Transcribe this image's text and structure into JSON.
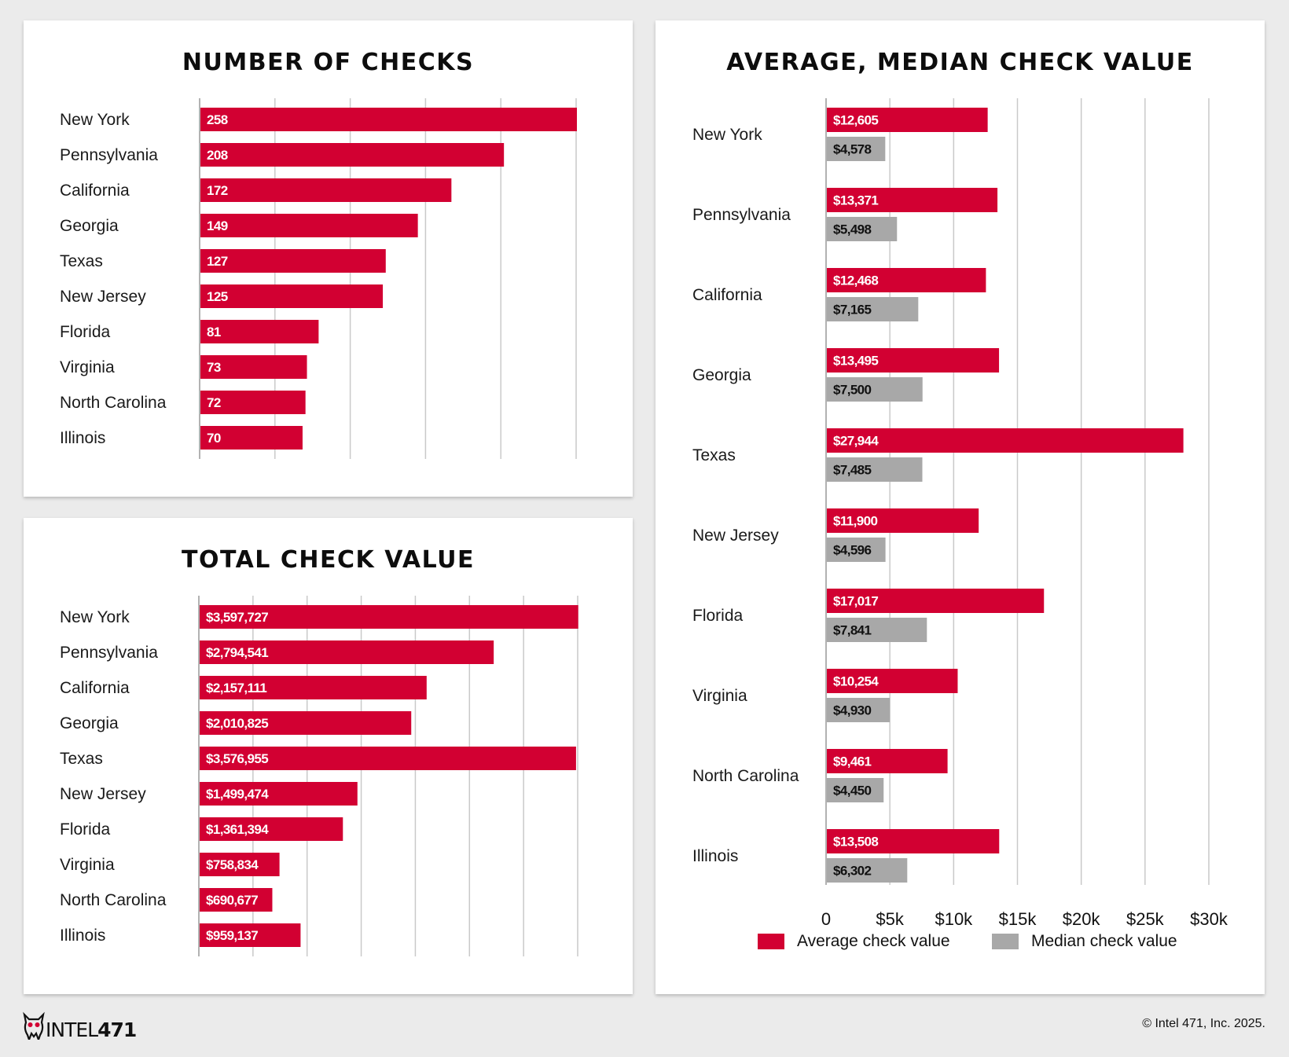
{
  "colors": {
    "red": "#d20032",
    "gray": "#a8a8a8",
    "grid": "#c9c9c9",
    "axis": "#999999"
  },
  "chart_data": [
    {
      "type": "bar",
      "title": "NUMBER OF CHECKS",
      "categories": [
        "New York",
        "Pennsylvania",
        "California",
        "Georgia",
        "Texas",
        "New Jersey",
        "Florida",
        "Virginia",
        "North Carolina",
        "Illinois"
      ],
      "values": [
        258,
        208,
        172,
        149,
        127,
        125,
        81,
        73,
        72,
        70
      ],
      "value_labels": [
        "258",
        "208",
        "172",
        "149",
        "127",
        "125",
        "81",
        "73",
        "72",
        "70"
      ],
      "xlim": [
        0,
        258
      ],
      "grid": true
    },
    {
      "type": "bar",
      "title": "TOTAL CHECK VALUE",
      "categories": [
        "New York",
        "Pennsylvania",
        "California",
        "Georgia",
        "Texas",
        "New Jersey",
        "Florida",
        "Virginia",
        "North Carolina",
        "Illinois"
      ],
      "values": [
        3597727,
        2794541,
        2157111,
        2010825,
        3576955,
        1499474,
        1361394,
        758834,
        690677,
        959137
      ],
      "value_labels": [
        "$3,597,727",
        "$2,794,541",
        "$2,157,111",
        "$2,010,825",
        "$3,576,955",
        "$1,499,474",
        "$1,361,394",
        "$758,834",
        "$690,677",
        "$959,137"
      ],
      "xlim": [
        0,
        3600000
      ],
      "grid": true
    },
    {
      "type": "bar",
      "title": "AVERAGE, MEDIAN CHECK VALUE",
      "categories": [
        "New York",
        "Pennsylvania",
        "California",
        "Georgia",
        "Texas",
        "New Jersey",
        "Florida",
        "Virginia",
        "North Carolina",
        "Illinois"
      ],
      "series": [
        {
          "name": "Average check value",
          "values": [
            12605,
            13371,
            12468,
            13495,
            27944,
            11900,
            17017,
            10254,
            9461,
            13508
          ],
          "value_labels": [
            "$12,605",
            "$13,371",
            "$12,468",
            "$13,495",
            "$27,944",
            "$11,900",
            "$17,017",
            "$10,254",
            "$9,461",
            "$13,508"
          ]
        },
        {
          "name": "Median check value",
          "values": [
            4578,
            5498,
            7165,
            7500,
            7485,
            4596,
            7841,
            4930,
            4450,
            6302
          ],
          "value_labels": [
            "$4,578",
            "$5,498",
            "$7,165",
            "$7,500",
            "$7,485",
            "$4,596",
            "$7,841",
            "$4,930",
            "$4,450",
            "$6,302"
          ]
        }
      ],
      "xlim": [
        0,
        30000
      ],
      "xticks": [
        0,
        5000,
        10000,
        15000,
        20000,
        25000,
        30000
      ],
      "xtick_labels": [
        "0",
        "$5k",
        "$10k",
        "$15k",
        "$20k",
        "$25k",
        "$30k"
      ],
      "legend": "bottom",
      "grid": true
    }
  ],
  "footer": {
    "logo_letters": "INTEL",
    "logo_number": "471",
    "copyright": "© Intel 471, Inc. 2025."
  }
}
